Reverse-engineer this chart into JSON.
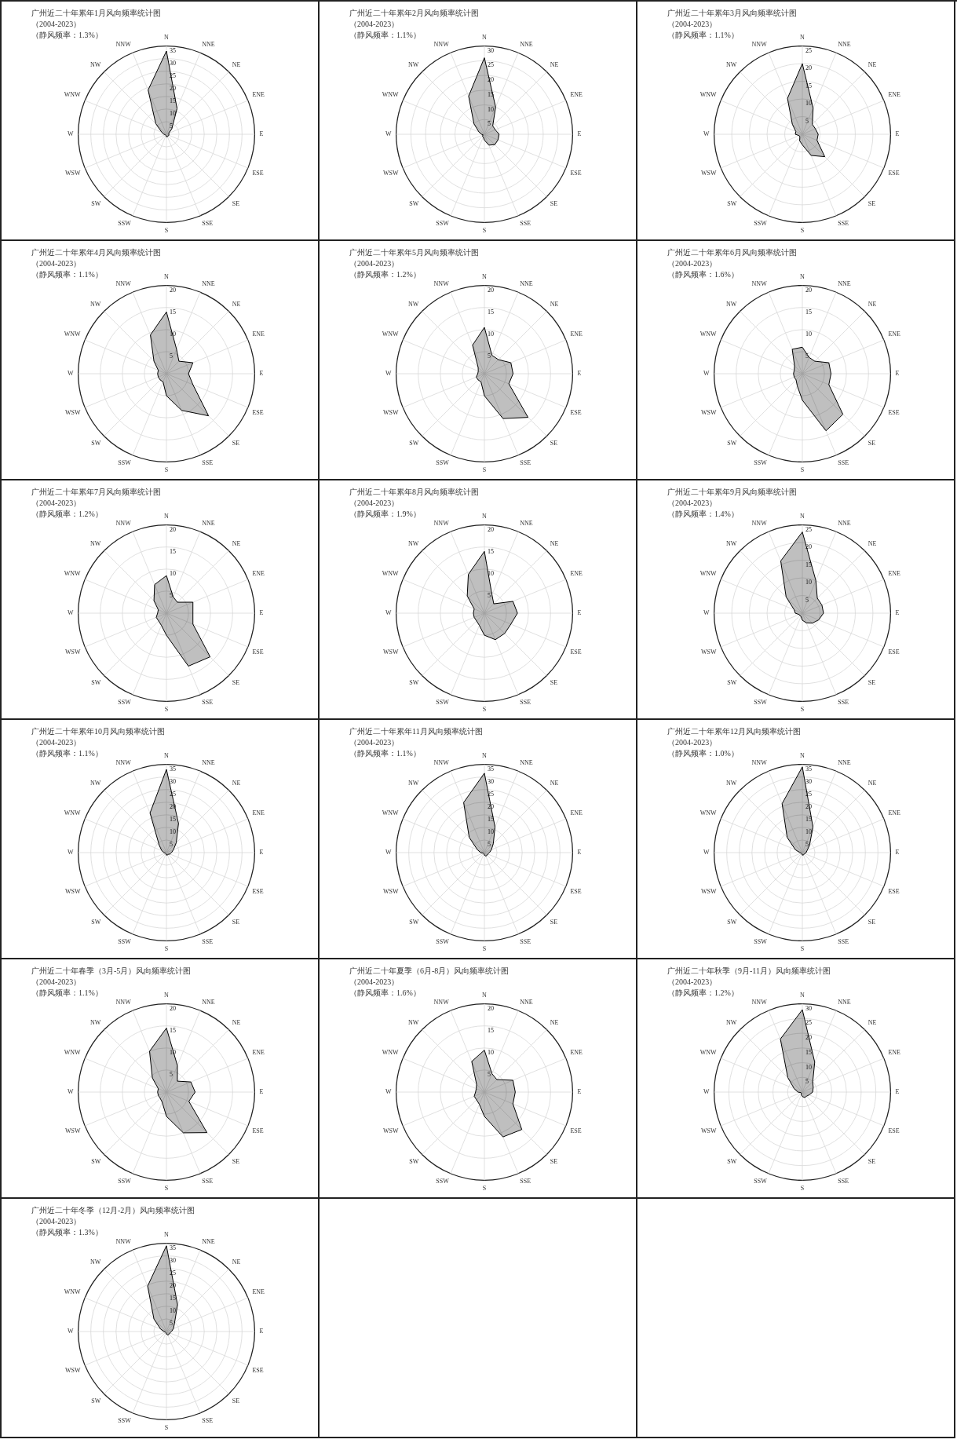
{
  "chart_data": [
    {
      "type": "radar",
      "title": "广州近二十年累年1月风向频率统计图",
      "subtitle": "（2004-2023）",
      "annotations": [
        "（静风频率：1.3%）"
      ],
      "categories": [
        "N",
        "NNE",
        "NE",
        "ENE",
        "E",
        "ESE",
        "SE",
        "SSE",
        "S",
        "SSW",
        "SW",
        "WSW",
        "W",
        "WNW",
        "NW",
        "NNW"
      ],
      "series": [
        {
          "color": "#000000",
          "values": [
            33,
            11,
            3,
            1,
            1,
            1,
            1,
            1,
            1,
            0.5,
            0.5,
            0.5,
            1,
            2,
            6,
            19
          ]
        }
      ],
      "ylim": [
        0,
        35
      ],
      "yticks": [
        5,
        10,
        15,
        20,
        25,
        30,
        35
      ],
      "grid": true,
      "marker": "none"
    },
    {
      "type": "radar",
      "title": "广州近二十年累年2月风向频率统计图",
      "subtitle": "（2004-2023）",
      "annotations": [
        "（静风频率：1.1%）"
      ],
      "categories": [
        "N",
        "NNE",
        "NE",
        "ENE",
        "E",
        "ESE",
        "SE",
        "SSE",
        "S",
        "SSW",
        "SW",
        "WSW",
        "W",
        "WNW",
        "NW",
        "NNW"
      ],
      "series": [
        {
          "color": "#000000",
          "values": [
            26,
            10,
            4,
            4,
            5,
            5,
            5,
            4,
            2,
            1,
            1,
            0.5,
            1,
            2,
            5,
            14
          ]
        }
      ],
      "ylim": [
        0,
        30
      ],
      "yticks": [
        5,
        10,
        15,
        20,
        25,
        30
      ],
      "grid": true,
      "marker": "none"
    },
    {
      "type": "radar",
      "title": "广州近二十年累年3月风向频率统计图",
      "subtitle": "（2004-2023）",
      "annotations": [
        "（静风频率：1.1%）"
      ],
      "categories": [
        "N",
        "NNE",
        "NE",
        "ENE",
        "E",
        "ESE",
        "SE",
        "SSE",
        "S",
        "SSW",
        "SW",
        "WSW",
        "W",
        "WNW",
        "NW",
        "NNW"
      ],
      "series": [
        {
          "color": "#000000",
          "values": [
            20,
            8,
            4,
            4,
            4.5,
            4.5,
            9,
            6.5,
            3,
            2,
            1,
            1,
            2,
            2,
            4,
            11
          ]
        }
      ],
      "ylim": [
        0,
        25
      ],
      "yticks": [
        5,
        10,
        15,
        20,
        25
      ],
      "grid": true,
      "marker": "none"
    },
    {
      "type": "radar",
      "title": "广州近二十年累年4月风向频率统计图",
      "subtitle": "（2004-2023）",
      "annotations": [
        "（静风频率：1.1%）"
      ],
      "categories": [
        "N",
        "NNE",
        "NE",
        "ENE",
        "E",
        "ESE",
        "SE",
        "SSE",
        "S",
        "SSW",
        "SW",
        "WSW",
        "W",
        "WNW",
        "NW",
        "NNW"
      ],
      "series": [
        {
          "color": "#000000",
          "values": [
            14,
            6,
            4,
            6.5,
            5,
            6.5,
            13.5,
            9,
            5,
            2,
            2,
            2,
            2,
            2,
            4,
            9.5
          ]
        }
      ],
      "ylim": [
        0,
        20
      ],
      "yticks": [
        5,
        10,
        15,
        20
      ],
      "grid": true,
      "marker": "none"
    },
    {
      "type": "radar",
      "title": "广州近二十年累年5月风向频率统计图",
      "subtitle": "（2004-2023）",
      "annotations": [
        "（静风频率：1.2%）"
      ],
      "categories": [
        "N",
        "NNE",
        "NE",
        "ENE",
        "E",
        "ESE",
        "SE",
        "SSE",
        "S",
        "SSW",
        "SW",
        "WSW",
        "W",
        "WNW",
        "NW",
        "NNW"
      ],
      "series": [
        {
          "color": "#000000",
          "values": [
            10.5,
            4.5,
            4.5,
            6.5,
            6.5,
            6,
            14,
            11,
            5,
            2,
            2,
            2,
            1.5,
            1.5,
            2,
            7
          ]
        }
      ],
      "ylim": [
        0,
        20
      ],
      "yticks": [
        5,
        10,
        15,
        20
      ],
      "grid": true,
      "marker": "none"
    },
    {
      "type": "radar",
      "title": "广州近二十年累年6月风向频率统计图",
      "subtitle": "（2004-2023）",
      "annotations": [
        "（静风频率：1.6%）"
      ],
      "categories": [
        "N",
        "NNE",
        "NE",
        "ENE",
        "E",
        "ESE",
        "SE",
        "SSE",
        "S",
        "SSW",
        "SW",
        "WSW",
        "W",
        "WNW",
        "NW",
        "NNW"
      ],
      "series": [
        {
          "color": "#000000",
          "values": [
            6,
            4,
            4,
            6.5,
            6.5,
            6.5,
            13,
            14,
            6,
            3,
            2,
            2,
            2,
            2,
            2.5,
            6
          ]
        }
      ],
      "ylim": [
        0,
        20
      ],
      "yticks": [
        5,
        10,
        15,
        20
      ],
      "grid": true,
      "marker": "none"
    },
    {
      "type": "radar",
      "title": "广州近二十年累年7月风向频率统计图",
      "subtitle": "（2004-2023）",
      "annotations": [
        "（静风频率：1.2%）"
      ],
      "categories": [
        "N",
        "NNE",
        "NE",
        "ENE",
        "E",
        "ESE",
        "SE",
        "SSE",
        "S",
        "SSW",
        "SW",
        "WSW",
        "W",
        "WNW",
        "NW",
        "NNW"
      ],
      "series": [
        {
          "color": "#000000",
          "values": [
            8.5,
            4,
            3.5,
            6.5,
            6,
            6.5,
            14,
            13,
            5,
            3,
            2.5,
            2.5,
            2,
            2,
            4,
            7
          ]
        }
      ],
      "ylim": [
        0,
        20
      ],
      "yticks": [
        5,
        10,
        15,
        20
      ],
      "grid": true,
      "marker": "none"
    },
    {
      "type": "radar",
      "title": "广州近二十年累年8月风向频率统计图",
      "subtitle": "（2004-2023）",
      "annotations": [
        "（静风频率：1.9%）"
      ],
      "categories": [
        "N",
        "NNE",
        "NE",
        "ENE",
        "E",
        "ESE",
        "SE",
        "SSE",
        "S",
        "SSW",
        "SW",
        "WSW",
        "W",
        "WNW",
        "NW",
        "NNW"
      ],
      "series": [
        {
          "color": "#000000",
          "values": [
            14,
            4.5,
            3,
            7,
            7.5,
            6.5,
            6.5,
            6.5,
            5,
            3,
            2.5,
            2.5,
            2.5,
            2.5,
            5.5,
            9.5
          ]
        }
      ],
      "ylim": [
        0,
        20
      ],
      "yticks": [
        5,
        10,
        15,
        20
      ],
      "grid": true,
      "marker": "none"
    },
    {
      "type": "radar",
      "title": "广州近二十年累年9月风向频率统计图",
      "subtitle": "（2004-2023）",
      "annotations": [
        "（静风频率：1.4%）"
      ],
      "categories": [
        "N",
        "NNE",
        "NE",
        "ENE",
        "E",
        "ESE",
        "SE",
        "SSE",
        "S",
        "SSW",
        "SW",
        "WSW",
        "W",
        "WNW",
        "NW",
        "NNW"
      ],
      "series": [
        {
          "color": "#000000",
          "values": [
            23,
            10,
            6,
            6,
            6,
            5,
            4,
            3,
            2,
            1,
            1,
            1,
            2,
            2.5,
            6.5,
            16
          ]
        }
      ],
      "ylim": [
        0,
        25
      ],
      "yticks": [
        5,
        10,
        15,
        20,
        25
      ],
      "grid": true,
      "marker": "none"
    },
    {
      "type": "radar",
      "title": "广州近二十年累年10月风向频率统计图",
      "subtitle": "（2004-2023）",
      "annotations": [
        "（静风频率：1.1%）"
      ],
      "categories": [
        "N",
        "NNE",
        "NE",
        "ENE",
        "E",
        "ESE",
        "SE",
        "SSE",
        "S",
        "SSW",
        "SW",
        "WSW",
        "W",
        "WNW",
        "NW",
        "NNW"
      ],
      "series": [
        {
          "color": "#000000",
          "values": [
            33,
            12.5,
            5.5,
            3,
            2,
            1.5,
            1,
            1,
            1,
            0.5,
            0.5,
            0.5,
            1,
            2,
            4,
            17
          ]
        }
      ],
      "ylim": [
        0,
        35
      ],
      "yticks": [
        5,
        10,
        15,
        20,
        25,
        30,
        35
      ],
      "grid": true,
      "marker": "none"
    },
    {
      "type": "radar",
      "title": "广州近二十年累年11月风向频率统计图",
      "subtitle": "（2004-2023）",
      "annotations": [
        "（静风频率：1.1%）"
      ],
      "categories": [
        "N",
        "NNE",
        "NE",
        "ENE",
        "E",
        "ESE",
        "SE",
        "SSE",
        "S",
        "SSW",
        "SW",
        "WSW",
        "W",
        "WNW",
        "NW",
        "NNW"
      ],
      "series": [
        {
          "color": "#000000",
          "values": [
            31.5,
            11,
            5,
            3,
            2,
            1.5,
            1.5,
            1.5,
            1,
            0.5,
            0.5,
            0.5,
            1.5,
            3,
            8.5,
            21.5
          ]
        }
      ],
      "ylim": [
        0,
        35
      ],
      "yticks": [
        5,
        10,
        15,
        20,
        25,
        30,
        35
      ],
      "grid": true,
      "marker": "none"
    },
    {
      "type": "radar",
      "title": "广州近二十年累年12月风向频率统计图",
      "subtitle": "（2004-2023）",
      "annotations": [
        "（静风频率：1.0%）"
      ],
      "categories": [
        "N",
        "NNE",
        "NE",
        "ENE",
        "E",
        "ESE",
        "SE",
        "SSE",
        "S",
        "SSW",
        "SW",
        "WSW",
        "W",
        "WNW",
        "NW",
        "NNW"
      ],
      "series": [
        {
          "color": "#000000",
          "values": [
            34,
            11,
            4,
            2,
            1.5,
            1,
            1,
            1,
            1,
            0.5,
            0.5,
            0.5,
            1,
            3,
            8.5,
            21
          ]
        }
      ],
      "ylim": [
        0,
        35
      ],
      "yticks": [
        5,
        10,
        15,
        20,
        25,
        30,
        35
      ],
      "grid": true,
      "marker": "none"
    },
    {
      "type": "radar",
      "title": "广州近二十年春季（3月-5月）风向频率统计图",
      "subtitle": "（2004-2023）",
      "annotations": [
        "（静风频率：1.1%）"
      ],
      "categories": [
        "N",
        "NNE",
        "NE",
        "ENE",
        "E",
        "ESE",
        "SE",
        "SSE",
        "S",
        "SSW",
        "SW",
        "WSW",
        "W",
        "WNW",
        "NW",
        "NNW"
      ],
      "series": [
        {
          "color": "#000000",
          "values": [
            14.5,
            6.5,
            3.5,
            6,
            6.5,
            5.5,
            13,
            10,
            5.5,
            2.5,
            2,
            2,
            2,
            2,
            4.5,
            10
          ]
        }
      ],
      "ylim": [
        0,
        20
      ],
      "yticks": [
        5,
        10,
        15,
        20
      ],
      "grid": true,
      "marker": "none"
    },
    {
      "type": "radar",
      "title": "广州近二十年夏季（6月-8月）风向频率统计图",
      "subtitle": "（2004-2023）",
      "annotations": [
        "（静风频率：1.6%）"
      ],
      "categories": [
        "N",
        "NNE",
        "NE",
        "ENE",
        "E",
        "ESE",
        "SE",
        "SSE",
        "S",
        "SSW",
        "SW",
        "WSW",
        "W",
        "WNW",
        "NW",
        "NNW"
      ],
      "series": [
        {
          "color": "#000000",
          "values": [
            9.5,
            4.5,
            4,
            7,
            7,
            7,
            12,
            11,
            5.5,
            3,
            2.5,
            2.5,
            2,
            2,
            2.5,
            7.5
          ]
        }
      ],
      "ylim": [
        0,
        20
      ],
      "yticks": [
        5,
        10,
        15,
        20
      ],
      "grid": true,
      "marker": "none"
    },
    {
      "type": "radar",
      "title": "广州近二十年秋季（9月-11月）风向频率统计图",
      "subtitle": "（2004-2023）",
      "annotations": [
        "（静风频率：1.2%）"
      ],
      "categories": [
        "N",
        "NNE",
        "NE",
        "ENE",
        "E",
        "ESE",
        "SE",
        "SSE",
        "S",
        "SSW",
        "SW",
        "WSW",
        "W",
        "WNW",
        "NW",
        "NNW"
      ],
      "series": [
        {
          "color": "#000000",
          "values": [
            28,
            11,
            5,
            4,
            3.5,
            2.5,
            2,
            2,
            1.5,
            1,
            0.5,
            0.5,
            1.5,
            3,
            7,
            19.5
          ]
        }
      ],
      "ylim": [
        0,
        30
      ],
      "yticks": [
        5,
        10,
        15,
        20,
        25,
        30
      ],
      "grid": true,
      "marker": "none"
    },
    {
      "type": "radar",
      "title": "广州近二十年冬季（12月-2月）风向频率统计图",
      "subtitle": "（2004-2023）",
      "annotations": [
        "（静风频率：1.3%）"
      ],
      "categories": [
        "N",
        "NNE",
        "NE",
        "ENE",
        "E",
        "ESE",
        "SE",
        "SSE",
        "S",
        "SSW",
        "SW",
        "WSW",
        "W",
        "WNW",
        "NW",
        "NNW"
      ],
      "series": [
        {
          "color": "#000000",
          "values": [
            34,
            11.5,
            4.5,
            3,
            2,
            1.5,
            1.5,
            1.5,
            1,
            0.5,
            0.5,
            0.5,
            1,
            2.5,
            7,
            19.5
          ]
        }
      ],
      "ylim": [
        0,
        35
      ],
      "yticks": [
        5,
        10,
        15,
        20,
        25,
        30,
        35
      ],
      "grid": true,
      "marker": "none"
    }
  ]
}
